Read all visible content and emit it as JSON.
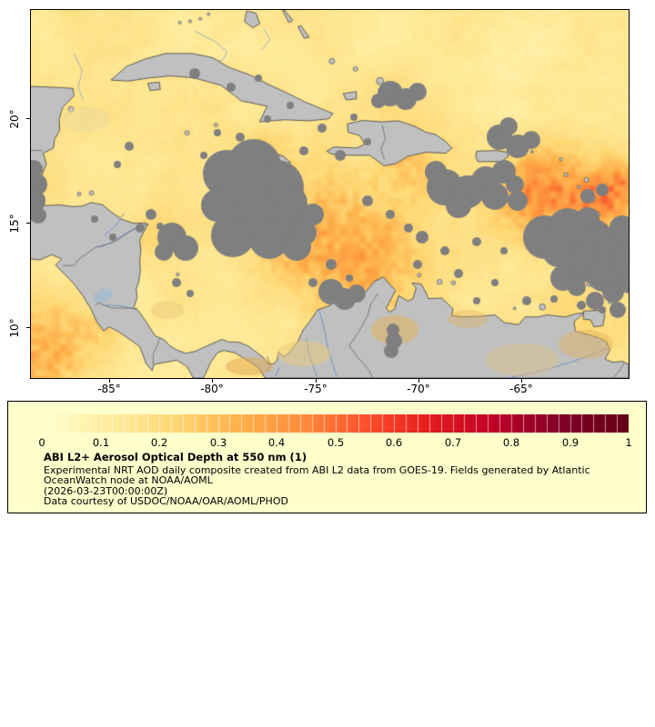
{
  "map": {
    "x_tick_labels": [
      "-85°",
      "-80°",
      "-75°",
      "-70°",
      "-65°"
    ],
    "y_tick_labels": [
      "20°",
      "15°",
      "10°"
    ]
  },
  "colorbar": {
    "tick_labels": [
      "0",
      "0.1",
      "0.2",
      "0.3",
      "0.4",
      "0.5",
      "0.6",
      "0.7",
      "0.8",
      "0.9",
      "1"
    ],
    "stops": [
      "#ffffcc",
      "#ffeda0",
      "#fed976",
      "#feb24c",
      "#fd8d3c",
      "#fc4e2a",
      "#e31a1c",
      "#bd0026",
      "#800026",
      "#670016"
    ]
  },
  "legend": {
    "title": "ABI L2+ Aerosol Optical Depth at 550 nm (1)",
    "lines": [
      "Experimental NRT AOD daily composite created from ABI L2 data from GOES-19. Fields generated by Atlantic",
      "OceanWatch node at NOAA/AOML",
      "(2026-03-23T00:00:00Z)",
      "Data courtesy of USDOC/NOAA/OAR/AOML/PHOD"
    ],
    "background": "#ffffcc"
  },
  "colors": {
    "land": "#c0c0c0",
    "no_data": "#7f7f7f",
    "coastline": "#3f3f3f",
    "border_line": "#5b5b5b",
    "river": "#6e8fc9",
    "lake": "#a9bccb",
    "bathymetry_line": "#7b9fd4",
    "page_background": "#ffffff"
  }
}
